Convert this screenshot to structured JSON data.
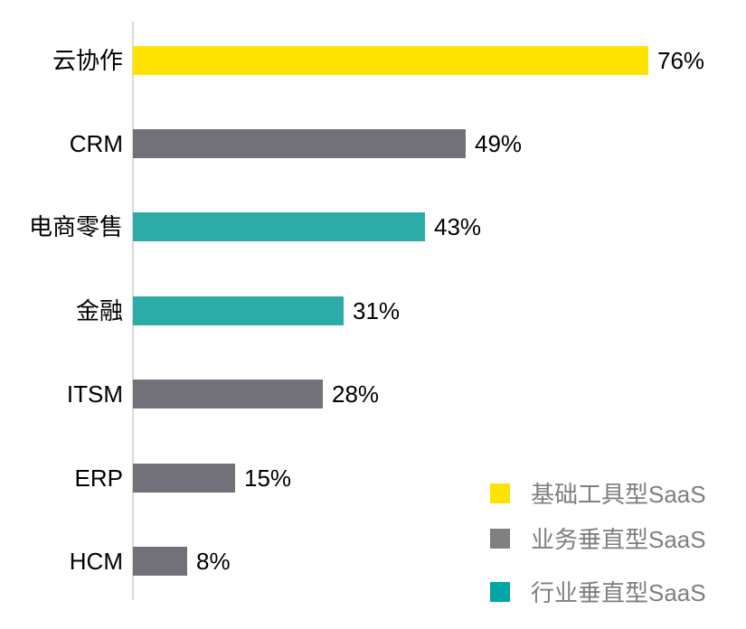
{
  "chart_data": {
    "type": "bar",
    "orientation": "horizontal",
    "title": "",
    "categories": [
      "云协作",
      "CRM",
      "电商零售",
      "金融",
      "ITSM",
      "ERP",
      "HCM"
    ],
    "values": [
      76,
      49,
      43,
      31,
      28,
      15,
      8
    ],
    "value_labels": [
      "76%",
      "49%",
      "43%",
      "31%",
      "28%",
      "15%",
      "8%"
    ],
    "series_by_bar": [
      "基础工具型SaaS",
      "业务垂直型SaaS",
      "行业垂直型SaaS",
      "行业垂直型SaaS",
      "业务垂直型SaaS",
      "业务垂直型SaaS",
      "业务垂直型SaaS"
    ],
    "bar_colors": [
      "#FFE300",
      "#727179",
      "#2BACA6",
      "#2BACA6",
      "#727179",
      "#727179",
      "#727179"
    ],
    "grid": false,
    "axis_line_color": "#D9D9D9",
    "label_color": "#000000",
    "legend": {
      "position": "bottom-right",
      "text_color": "#7F7F7F",
      "items": [
        {
          "label": "基础工具型SaaS",
          "color": "#FFE300"
        },
        {
          "label": "业务垂直型SaaS",
          "color": "#808080"
        },
        {
          "label": "行业垂直型SaaS",
          "color": "#00A5A6"
        }
      ]
    }
  }
}
